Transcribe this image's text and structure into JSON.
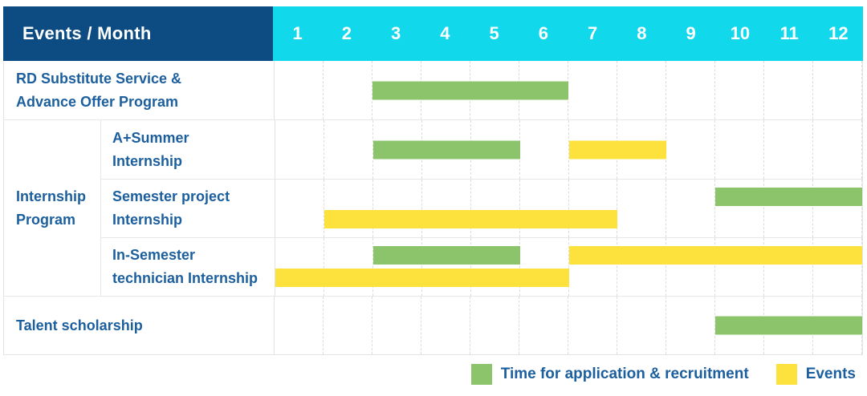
{
  "colors": {
    "header_bg": "#0c4c83",
    "months_bg": "#12d8ec",
    "label_text": "#1c5f9e"
  },
  "header": {
    "label": "Events / Month",
    "months": [
      "1",
      "2",
      "3",
      "4",
      "5",
      "6",
      "7",
      "8",
      "9",
      "10",
      "11",
      "12"
    ]
  },
  "legend": [
    {
      "id": "recruitment",
      "label": "Time for application & recruitment",
      "color": "#8bc46a"
    },
    {
      "id": "events",
      "label": "Events",
      "color": "#fde13d"
    }
  ],
  "chart_data": {
    "type": "bar",
    "subtype": "gantt",
    "title": "Events / Month",
    "x_axis": {
      "label": "Month",
      "range": [
        1,
        12
      ],
      "ticks": [
        1,
        2,
        3,
        4,
        5,
        6,
        7,
        8,
        9,
        10,
        11,
        12
      ]
    },
    "legend_position": "bottom-right",
    "grid": true,
    "rows": [
      {
        "group": null,
        "label": "RD Substitute Service &\nAdvance Offer Program",
        "bars": [
          {
            "series": "recruitment",
            "start_month": 3,
            "end_month": 6,
            "lane": "middle"
          }
        ]
      },
      {
        "group": "Internship\nProgram",
        "label": "A+Summer\nInternship",
        "bars": [
          {
            "series": "recruitment",
            "start_month": 3,
            "end_month": 5,
            "lane": "middle"
          },
          {
            "series": "events",
            "start_month": 7,
            "end_month": 8,
            "lane": "middle"
          }
        ]
      },
      {
        "group": "Internship\nProgram",
        "label": "Semester project\nInternship",
        "bars": [
          {
            "series": "recruitment",
            "start_month": 10,
            "end_month": 12,
            "lane": "top"
          },
          {
            "series": "events",
            "start_month": 2,
            "end_month": 7,
            "lane": "bottom"
          }
        ]
      },
      {
        "group": "Internship\nProgram",
        "label": "In-Semester\ntechnician Internship",
        "bars": [
          {
            "series": "recruitment",
            "start_month": 3,
            "end_month": 5,
            "lane": "top"
          },
          {
            "series": "events",
            "start_month": 7,
            "end_month": 12,
            "lane": "top"
          },
          {
            "series": "events",
            "start_month": 1,
            "end_month": 6,
            "lane": "bottom"
          }
        ]
      },
      {
        "group": null,
        "label": "Talent scholarship",
        "bars": [
          {
            "series": "recruitment",
            "start_month": 10,
            "end_month": 12,
            "lane": "middle"
          }
        ]
      }
    ]
  }
}
